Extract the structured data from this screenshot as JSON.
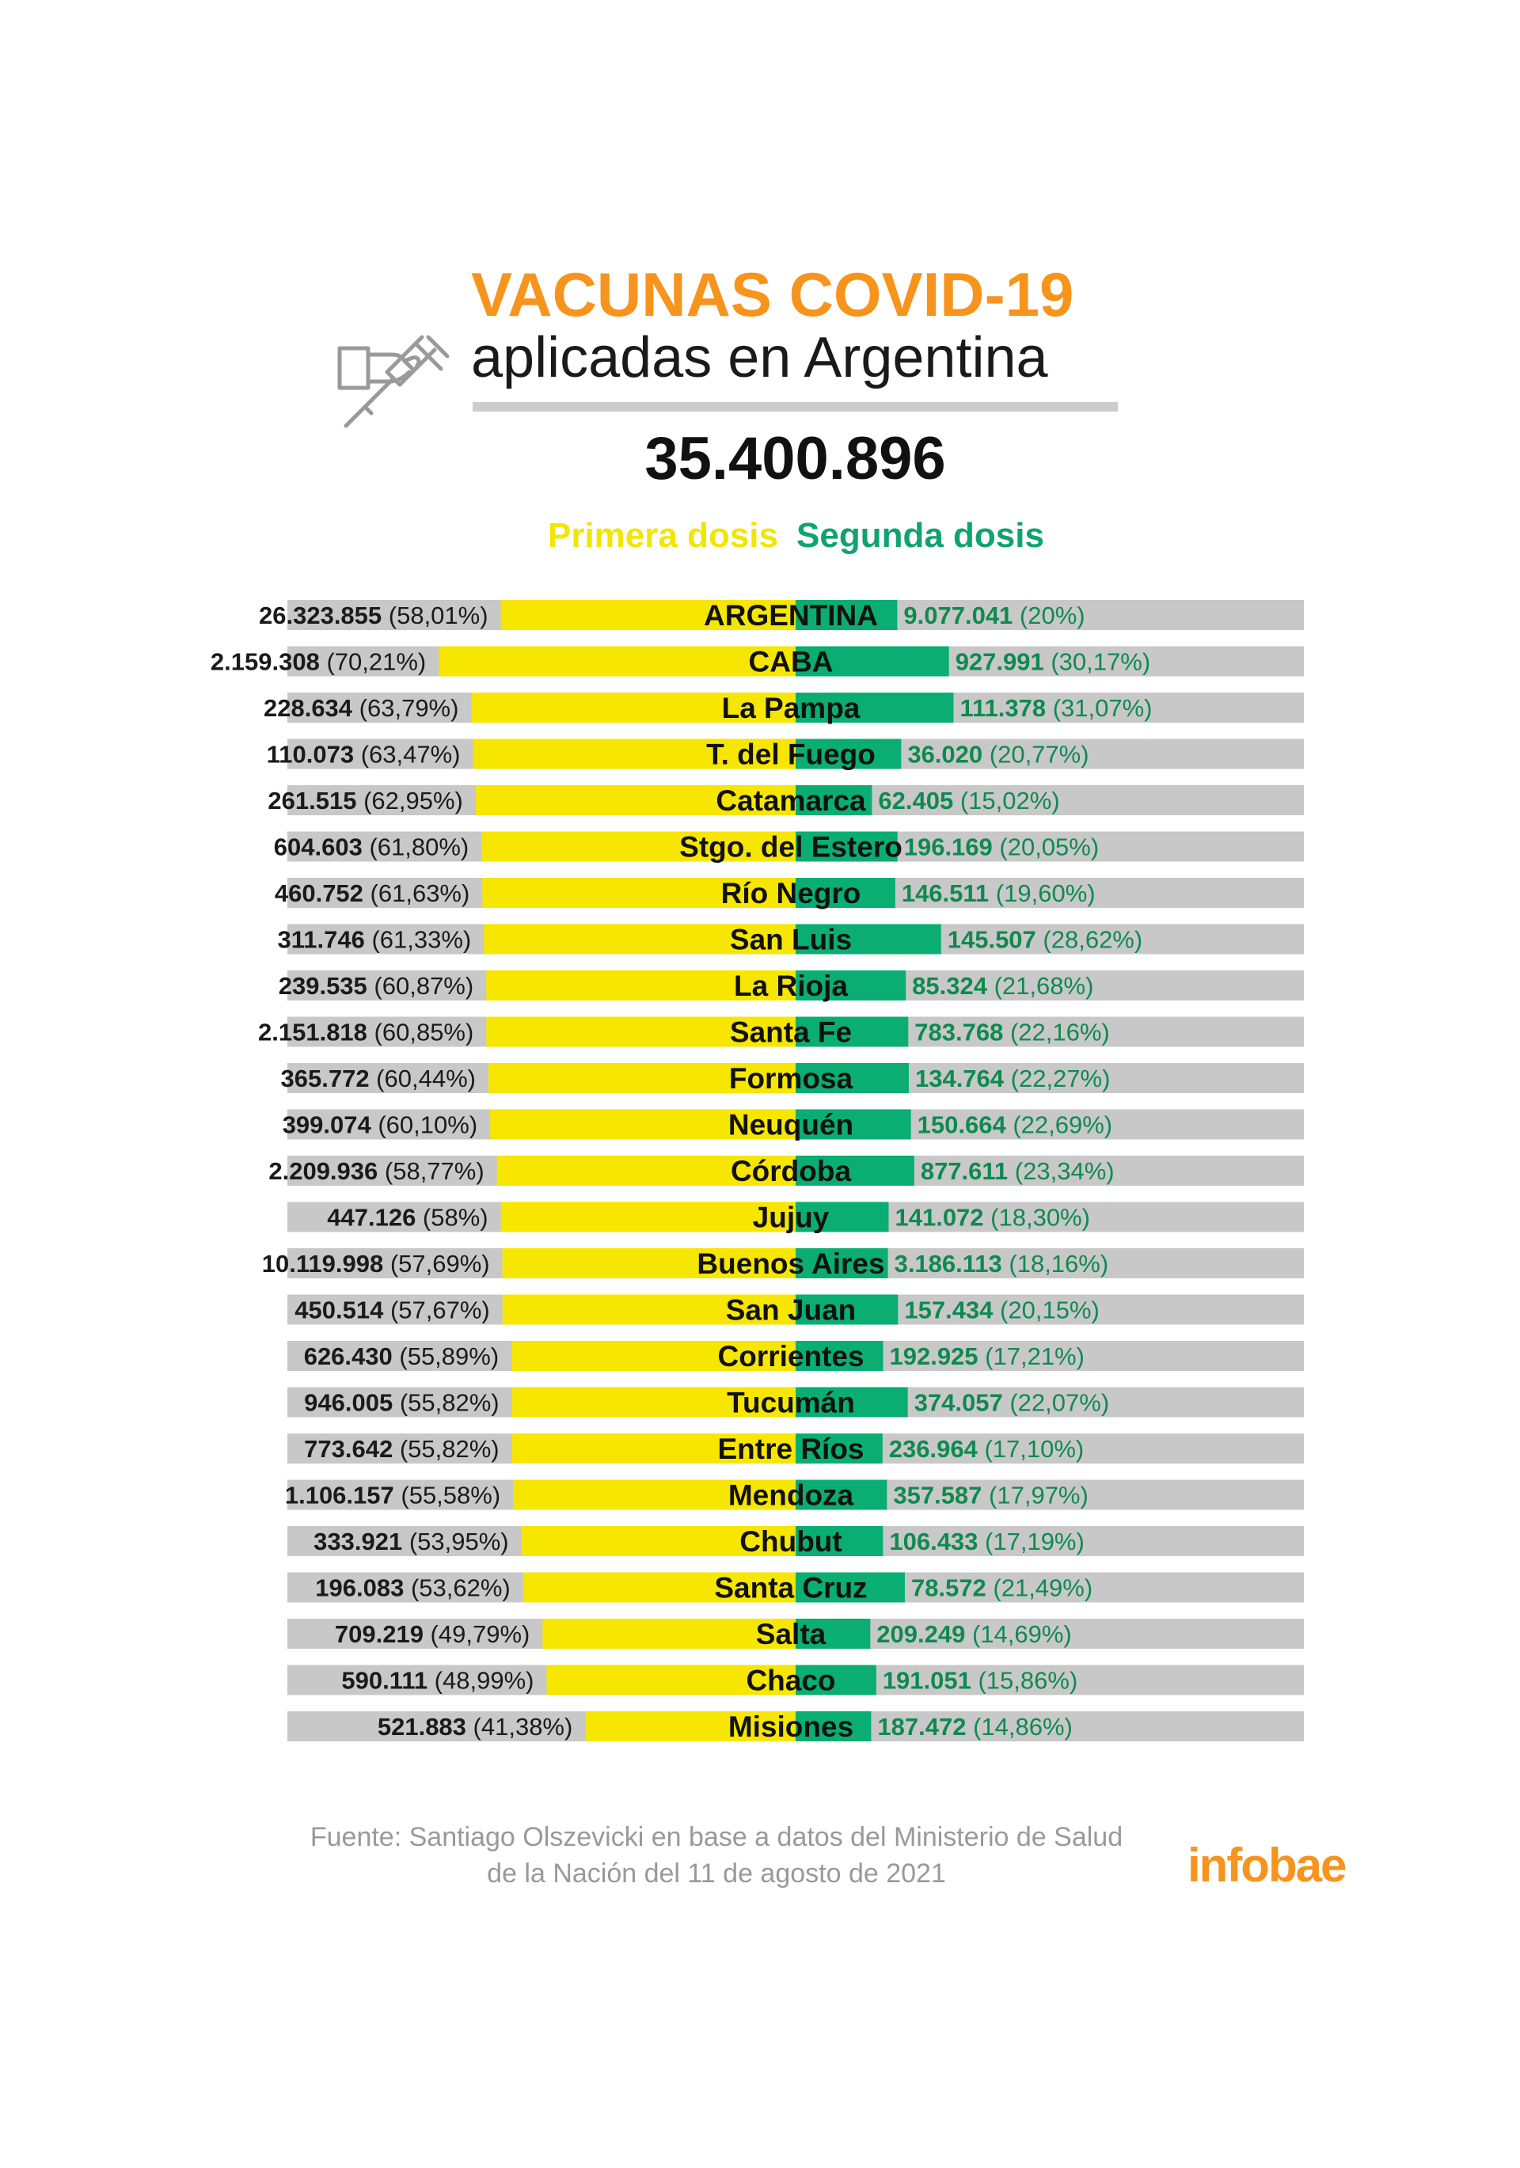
{
  "header": {
    "title_line1": "VACUNAS COVID-19",
    "title_line2": "aplicadas en Argentina",
    "total": "35.400.896",
    "legend_first": "Primera dosis",
    "legend_second": "Segunda dosis"
  },
  "icon": "syringe-hand-icon",
  "footer": {
    "source_line1": "Fuente: Santiago Olszevicki en base a datos del Ministerio de Salud",
    "source_line2": "de la Nación del 11 de agosto de 2021",
    "brand": "infobae"
  },
  "colors": {
    "first_dose": "#f7e600",
    "second_dose": "#0aae72",
    "remainder": "#c8c8c8",
    "title": "#f7941d",
    "second_text": "#0e8a4f",
    "brand": "#f7941d"
  },
  "chart_data": {
    "type": "bar",
    "layout": "diverging-horizontal",
    "series": [
      {
        "name": "Primera dosis",
        "unit": "% of population",
        "color": "#f7e600"
      },
      {
        "name": "Segunda dosis",
        "unit": "% of population",
        "color": "#0aae72"
      }
    ],
    "rows": [
      {
        "name": "ARGENTINA",
        "first": "26.323.855",
        "first_pct": 58.01,
        "first_pct_label": "(58,01%)",
        "second": "9.077.041",
        "second_pct": 20,
        "second_pct_label": "(20%)"
      },
      {
        "name": "CABA",
        "first": "2.159.308",
        "first_pct": 70.21,
        "first_pct_label": "(70,21%)",
        "second": "927.991",
        "second_pct": 30.17,
        "second_pct_label": "(30,17%)"
      },
      {
        "name": "La Pampa",
        "first": "228.634",
        "first_pct": 63.79,
        "first_pct_label": "(63,79%)",
        "second": "111.378",
        "second_pct": 31.07,
        "second_pct_label": "(31,07%)"
      },
      {
        "name": "T. del Fuego",
        "first": "110.073",
        "first_pct": 63.47,
        "first_pct_label": "(63,47%)",
        "second": "36.020",
        "second_pct": 20.77,
        "second_pct_label": "(20,77%)"
      },
      {
        "name": "Catamarca",
        "first": "261.515",
        "first_pct": 62.95,
        "first_pct_label": "(62,95%)",
        "second": "62.405",
        "second_pct": 15.02,
        "second_pct_label": "(15,02%)"
      },
      {
        "name": "Stgo. del Estero",
        "first": "604.603",
        "first_pct": 61.8,
        "first_pct_label": "(61,80%)",
        "second": "196.169",
        "second_pct": 20.05,
        "second_pct_label": "(20,05%)"
      },
      {
        "name": "Río Negro",
        "first": "460.752",
        "first_pct": 61.63,
        "first_pct_label": "(61,63%)",
        "second": "146.511",
        "second_pct": 19.6,
        "second_pct_label": "(19,60%)"
      },
      {
        "name": "San Luis",
        "first": "311.746",
        "first_pct": 61.33,
        "first_pct_label": "(61,33%)",
        "second": "145.507",
        "second_pct": 28.62,
        "second_pct_label": "(28,62%)"
      },
      {
        "name": "La Rioja",
        "first": "239.535",
        "first_pct": 60.87,
        "first_pct_label": "(60,87%)",
        "second": "85.324",
        "second_pct": 21.68,
        "second_pct_label": "(21,68%)"
      },
      {
        "name": "Santa Fe",
        "first": "2.151.818",
        "first_pct": 60.85,
        "first_pct_label": "(60,85%)",
        "second": "783.768",
        "second_pct": 22.16,
        "second_pct_label": "(22,16%)"
      },
      {
        "name": "Formosa",
        "first": "365.772",
        "first_pct": 60.44,
        "first_pct_label": "(60,44%)",
        "second": "134.764",
        "second_pct": 22.27,
        "second_pct_label": "(22,27%)"
      },
      {
        "name": "Neuquén",
        "first": "399.074",
        "first_pct": 60.1,
        "first_pct_label": "(60,10%)",
        "second": "150.664",
        "second_pct": 22.69,
        "second_pct_label": "(22,69%)"
      },
      {
        "name": "Córdoba",
        "first": "2.209.936",
        "first_pct": 58.77,
        "first_pct_label": "(58,77%)",
        "second": "877.611",
        "second_pct": 23.34,
        "second_pct_label": "(23,34%)"
      },
      {
        "name": "Jujuy",
        "first": "447.126",
        "first_pct": 58,
        "first_pct_label": "(58%)",
        "second": "141.072",
        "second_pct": 18.3,
        "second_pct_label": "(18,30%)"
      },
      {
        "name": "Buenos Aires",
        "first": "10.119.998",
        "first_pct": 57.69,
        "first_pct_label": "(57,69%)",
        "second": "3.186.113",
        "second_pct": 18.16,
        "second_pct_label": "(18,16%)"
      },
      {
        "name": "San Juan",
        "first": "450.514",
        "first_pct": 57.67,
        "first_pct_label": "(57,67%)",
        "second": "157.434",
        "second_pct": 20.15,
        "second_pct_label": "(20,15%)"
      },
      {
        "name": "Corrientes",
        "first": "626.430",
        "first_pct": 55.89,
        "first_pct_label": "(55,89%)",
        "second": "192.925",
        "second_pct": 17.21,
        "second_pct_label": "(17,21%)"
      },
      {
        "name": "Tucumán",
        "first": "946.005",
        "first_pct": 55.82,
        "first_pct_label": "(55,82%)",
        "second": "374.057",
        "second_pct": 22.07,
        "second_pct_label": "(22,07%)"
      },
      {
        "name": "Entre Ríos",
        "first": "773.642",
        "first_pct": 55.82,
        "first_pct_label": "(55,82%)",
        "second": "236.964",
        "second_pct": 17.1,
        "second_pct_label": "(17,10%)"
      },
      {
        "name": "Mendoza",
        "first": "1.106.157",
        "first_pct": 55.58,
        "first_pct_label": "(55,58%)",
        "second": "357.587",
        "second_pct": 17.97,
        "second_pct_label": "(17,97%)"
      },
      {
        "name": "Chubut",
        "first": "333.921",
        "first_pct": 53.95,
        "first_pct_label": "(53,95%)",
        "second": "106.433",
        "second_pct": 17.19,
        "second_pct_label": "(17,19%)"
      },
      {
        "name": "Santa Cruz",
        "first": "196.083",
        "first_pct": 53.62,
        "first_pct_label": "(53,62%)",
        "second": "78.572",
        "second_pct": 21.49,
        "second_pct_label": "(21,49%)"
      },
      {
        "name": "Salta",
        "first": "709.219",
        "first_pct": 49.79,
        "first_pct_label": "(49,79%)",
        "second": "209.249",
        "second_pct": 14.69,
        "second_pct_label": "(14,69%)"
      },
      {
        "name": "Chaco",
        "first": "590.111",
        "first_pct": 48.99,
        "first_pct_label": "(48,99%)",
        "second": "191.051",
        "second_pct": 15.86,
        "second_pct_label": "(15,86%)"
      },
      {
        "name": "Misiones",
        "first": "521.883",
        "first_pct": 41.38,
        "first_pct_label": "(41,38%)",
        "second": "187.472",
        "second_pct": 14.86,
        "second_pct_label": "(14,86%)"
      }
    ]
  }
}
